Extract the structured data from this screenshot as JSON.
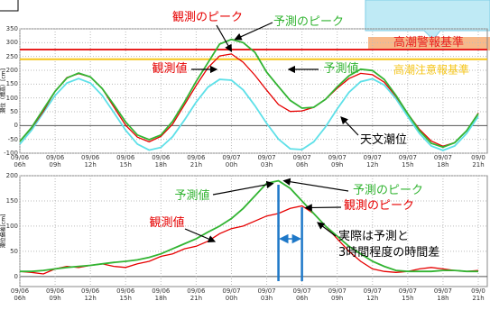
{
  "chart_data": [
    {
      "type": "line",
      "y_label": "潮位（標高）[cm]",
      "categories": [
        "09/06\n06h",
        null,
        null,
        "09/06\n09h",
        null,
        null,
        "09/06\n12h",
        null,
        null,
        "09/06\n15h",
        null,
        null,
        "09/06\n18h",
        null,
        null,
        "09/06\n21h",
        null,
        null,
        "09/07\n00h",
        null,
        null,
        "09/07\n03h",
        null,
        null,
        "09/07\n06h",
        null,
        null,
        "09/07\n09h",
        null,
        null,
        "09/07\n12h",
        null,
        null,
        "09/07\n15h",
        null,
        null,
        "09/07\n18h",
        null,
        null,
        "09/0\n21h"
      ],
      "series": [
        {
          "name": "予測値",
          "color": "#32b432",
          "values": [
            -57,
            -7,
            59,
            124,
            172,
            190,
            176,
            134,
            75,
            13,
            -34,
            -51,
            -34,
            15,
            85,
            160,
            227,
            295,
            312,
            300,
            265,
            193,
            141,
            91,
            63,
            66,
            95,
            140,
            180,
            204,
            199,
            167,
            109,
            43,
            -19,
            -64,
            -78,
            -62,
            -19,
            43
          ]
        },
        {
          "name": "観測値",
          "color": "#e60000",
          "values": [
            -57,
            -9,
            52,
            124,
            174,
            188,
            176,
            134,
            67,
            1,
            -42,
            -59,
            -39,
            5,
            75,
            145,
            209,
            252,
            259,
            229,
            182,
            128,
            76,
            51,
            53,
            66,
            95,
            135,
            170,
            189,
            184,
            157,
            105,
            43,
            -14,
            -56,
            -75,
            -62,
            -19,
            45
          ]
        },
        {
          "name": "天文潮位",
          "color": "#5ee0e8",
          "values": [
            -67,
            -17,
            47,
            109,
            154,
            170,
            154,
            109,
            47,
            -17,
            -67,
            -89,
            -79,
            -40,
            20,
            85,
            139,
            167,
            164,
            129,
            72,
            8,
            -49,
            -84,
            -87,
            -59,
            -5,
            60,
            120,
            159,
            169,
            147,
            97,
            33,
            -29,
            -74,
            -90,
            -74,
            -29,
            33
          ]
        }
      ],
      "reference_lines": [
        {
          "label": "高潮警報基準",
          "value": 275,
          "color": "#e82020"
        },
        {
          "label": "高潮注意報基準",
          "value": 240,
          "color": "#f5c518"
        }
      ],
      "annotations": [
        "観測のピーク",
        "予測のピーク"
      ],
      "ylim": [
        -100,
        350
      ],
      "yticks": [
        -100,
        -50,
        0,
        50,
        100,
        150,
        200,
        250,
        300,
        350
      ],
      "grid": true
    },
    {
      "type": "line",
      "y_label": "潮位偏差[cm]",
      "categories": [
        "09/06\n06h",
        null,
        null,
        "09/06\n09h",
        null,
        null,
        "09/06\n12h",
        null,
        null,
        "09/06\n15h",
        null,
        null,
        "09/06\n18h",
        null,
        null,
        "09/06\n21h",
        null,
        null,
        "09/07\n00h",
        null,
        null,
        "09/07\n03h",
        null,
        null,
        "09/07\n06h",
        null,
        null,
        "09/07\n09h",
        null,
        null,
        "09/07\n12h",
        null,
        null,
        "09/07\n15h",
        null,
        null,
        "09/07\n18h",
        null,
        null,
        "09/0\n21h"
      ],
      "series": [
        {
          "name": "予測値",
          "color": "#32b432",
          "values": [
            10,
            10,
            12,
            15,
            18,
            20,
            22,
            25,
            28,
            30,
            33,
            38,
            45,
            55,
            65,
            75,
            88,
            100,
            115,
            135,
            160,
            185,
            190,
            175,
            150,
            125,
            100,
            80,
            60,
            45,
            30,
            20,
            12,
            10,
            10,
            10,
            12,
            12,
            10,
            10
          ]
        },
        {
          "name": "観測値",
          "color": "#e60000",
          "values": [
            10,
            8,
            5,
            15,
            20,
            18,
            22,
            25,
            20,
            18,
            25,
            30,
            40,
            45,
            55,
            60,
            70,
            85,
            95,
            100,
            110,
            120,
            125,
            135,
            140,
            125,
            100,
            75,
            50,
            30,
            15,
            10,
            8,
            10,
            15,
            18,
            15,
            12,
            10,
            12
          ]
        }
      ],
      "annotations": [
        "予測のピーク",
        "観測のピーク",
        "実際は予測と\n3時間程度の時間差"
      ],
      "ylim": [
        -20,
        200
      ],
      "yticks": [
        0,
        50,
        100,
        150,
        200
      ],
      "grid": true
    }
  ]
}
